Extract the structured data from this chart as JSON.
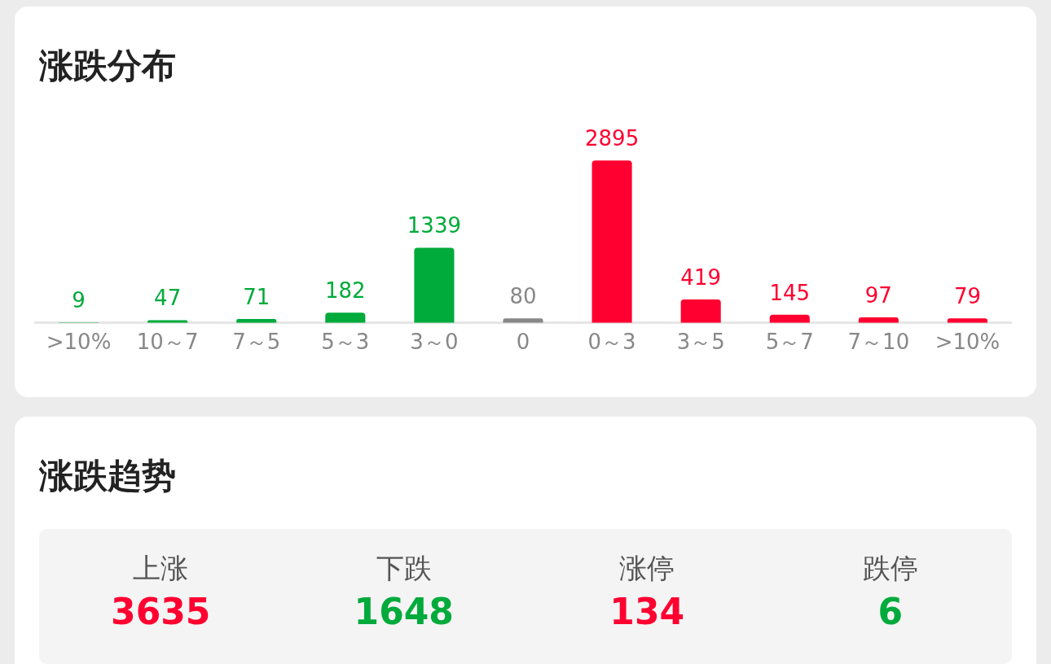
{
  "chart_data": [
    {
      "type": "bar",
      "title": "涨跌分布",
      "categories": [
        ">10%",
        "10～7",
        "7～5",
        "5～3",
        "3～0",
        "0",
        "0～3",
        "3～5",
        "5～7",
        "7～10",
        ">10%"
      ],
      "values": [
        9,
        47,
        71,
        182,
        1339,
        80,
        2895,
        419,
        145,
        97,
        79
      ],
      "colors": [
        "#00aa3b",
        "#00aa3b",
        "#00aa3b",
        "#00aa3b",
        "#00aa3b",
        "#888888",
        "#ff0030",
        "#ff0030",
        "#ff0030",
        "#ff0030",
        "#ff0030"
      ],
      "data_labels": true,
      "grid": false,
      "legend": false,
      "tick_labels": "x"
    },
    {
      "type": "other",
      "title": "涨跌趋势",
      "categories": [
        "上涨",
        "下跌",
        "涨停",
        "跌停"
      ],
      "value_labels": [
        "3635",
        "1648",
        "134",
        "6"
      ]
    }
  ]
}
